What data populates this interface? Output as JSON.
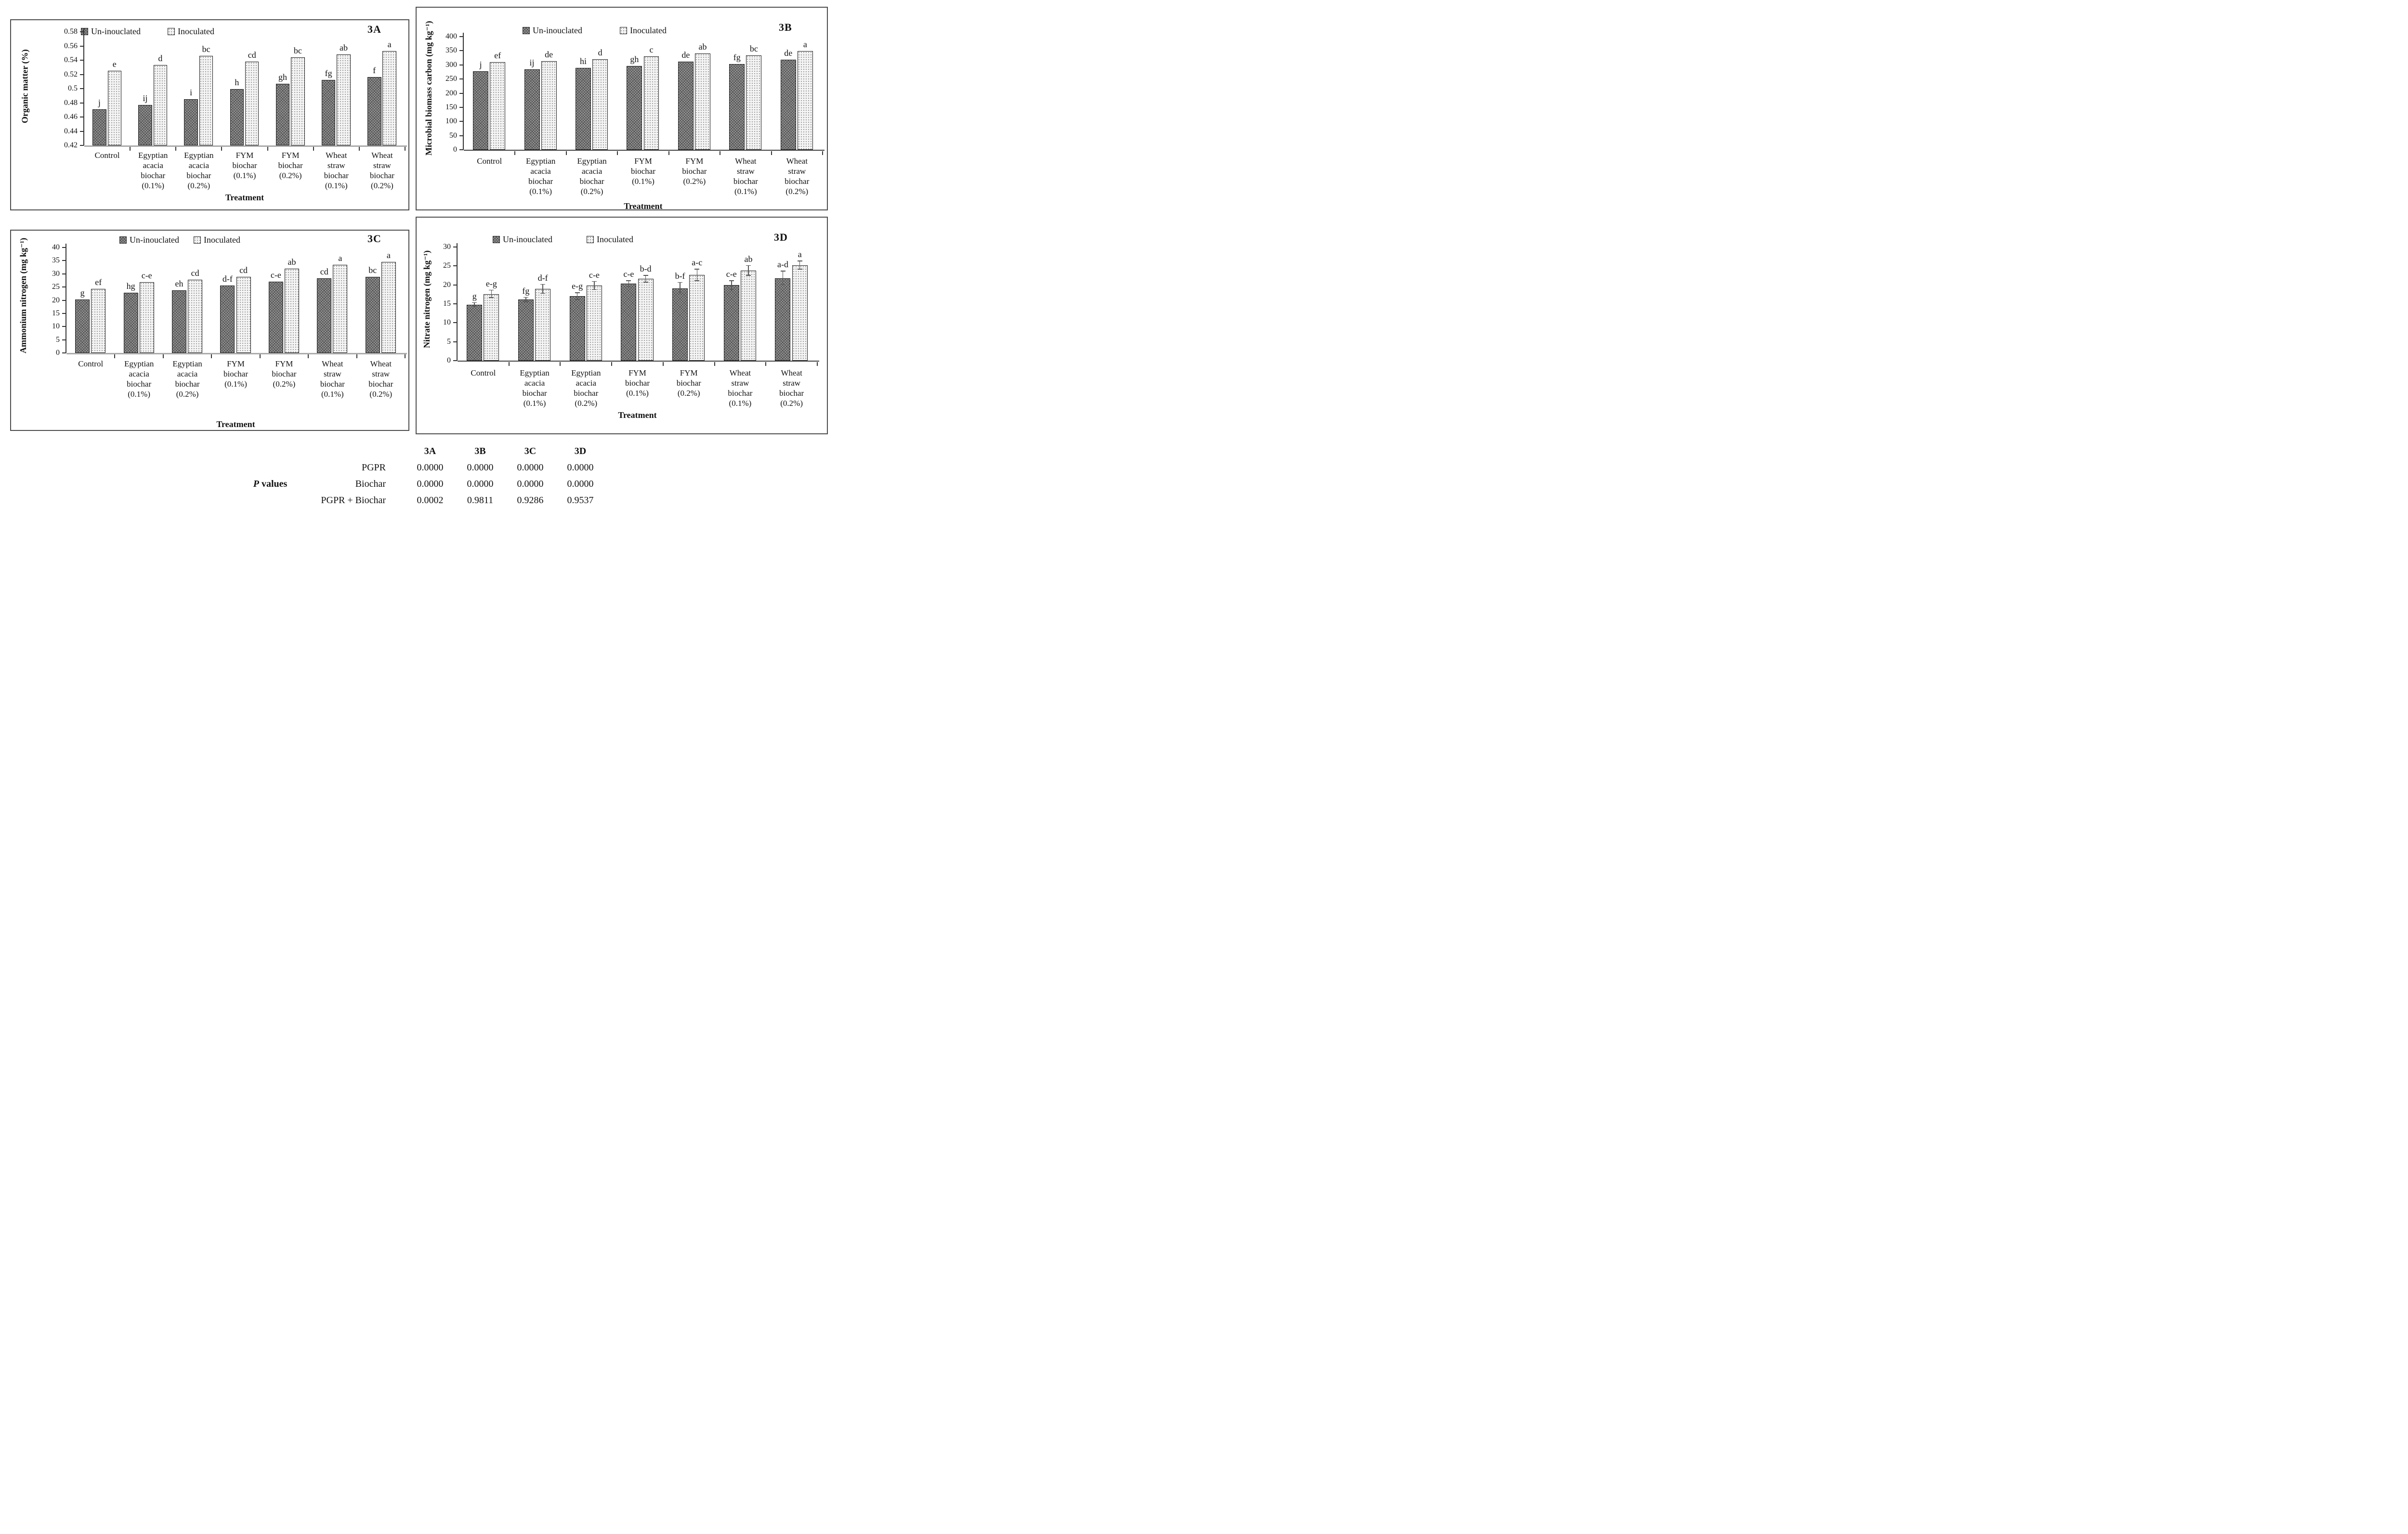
{
  "chart_data": [
    {
      "type": "bar",
      "title": "3A",
      "ylabel": "Organic matter (%)",
      "xlabel": "Treatment",
      "ylim": [
        0.42,
        0.58
      ],
      "yticks": [
        "0.58",
        "0.56",
        "0.54",
        "0.52",
        "0.5",
        "0.48",
        "0.46",
        "0.44",
        "0.42"
      ],
      "grid": false,
      "legend_position": "top",
      "categories": [
        "Control",
        "Egyptian\nacacia\nbiochar\n(0.1%)",
        "Egyptian\nacacia\nbiochar\n(0.2%)",
        "FYM\nbiochar\n(0.1%)",
        "FYM\nbiochar\n(0.2%)",
        "Wheat\nstraw\nbiochar\n(0.1%)",
        "Wheat\nstraw\nbiochar\n(0.2%)"
      ],
      "series": [
        {
          "name": "Un-inouclated",
          "values": [
            0.471,
            0.477,
            0.485,
            0.499,
            0.507,
            0.512,
            0.516
          ],
          "sig_letters": [
            "j",
            "ij",
            "i",
            "h",
            "gh",
            "fg",
            "f"
          ]
        },
        {
          "name": "Inoculated",
          "values": [
            0.525,
            0.533,
            0.546,
            0.538,
            0.544,
            0.548,
            0.553
          ],
          "sig_letters": [
            "e",
            "d",
            "bc",
            "cd",
            "bc",
            "ab",
            "a"
          ]
        }
      ]
    },
    {
      "type": "bar",
      "title": "3B",
      "ylabel": "Microbial biomass carbon (mg kg⁻¹)",
      "xlabel": "Treatment",
      "ylim": [
        0,
        400
      ],
      "yticks": [
        "400",
        "350",
        "300",
        "250",
        "200",
        "150",
        "100",
        "50",
        "0"
      ],
      "grid": false,
      "legend_position": "top",
      "categories": [
        "Control",
        "Egyptian\nacacia\nbiochar\n(0.1%)",
        "Egyptian\nacacia\nbiochar\n(0.2%)",
        "FYM\nbiochar\n(0.1%)",
        "FYM\nbiochar\n(0.2%)",
        "Wheat\nstraw\nbiochar\n(0.1%)",
        "Wheat\nstraw\nbiochar\n(0.2%)"
      ],
      "series": [
        {
          "name": "Un-inouclated",
          "values": [
            277,
            284,
            290,
            297,
            312,
            303,
            319
          ],
          "sig_letters": [
            "j",
            "ij",
            "hi",
            "gh",
            "de",
            "fg",
            "de"
          ]
        },
        {
          "name": "Inoculated",
          "values": [
            309,
            313,
            320,
            330,
            341,
            333,
            349
          ],
          "sig_letters": [
            "ef",
            "de",
            "d",
            "c",
            "ab",
            "bc",
            "a"
          ]
        }
      ]
    },
    {
      "type": "bar",
      "title": "3C",
      "ylabel": "Ammonium nitrogen  (mg kg⁻¹)",
      "xlabel": "Treatment",
      "ylim": [
        0,
        40
      ],
      "yticks": [
        "40",
        "35",
        "30",
        "25",
        "20",
        "15",
        "10",
        "5",
        "0"
      ],
      "grid": false,
      "legend_position": "top",
      "categories": [
        "Control",
        "Egyptian\nacacia\nbiochar\n(0.1%)",
        "Egyptian\nacacia\nbiochar\n(0.2%)",
        "FYM\nbiochar\n(0.1%)",
        "FYM\nbiochar\n(0.2%)",
        "Wheat\nstraw\nbiochar\n(0.1%)",
        "Wheat\nstraw\nbiochar\n(0.2%)"
      ],
      "series": [
        {
          "name": "Un-inouclated",
          "values": [
            20.2,
            22.8,
            23.7,
            25.5,
            27.0,
            28.3,
            28.8
          ],
          "sig_letters": [
            "g",
            "hg",
            "eh",
            "d-f",
            "c-e",
            "cd",
            "bc"
          ]
        },
        {
          "name": "Inoculated",
          "values": [
            24.3,
            26.8,
            27.7,
            28.8,
            31.9,
            33.5,
            34.6
          ],
          "sig_letters": [
            "ef",
            "c-e",
            "cd",
            "cd",
            "ab",
            "a",
            "a"
          ]
        }
      ]
    },
    {
      "type": "bar",
      "title": "3D",
      "ylabel": "Nitrate nitrogen  (mg kg⁻¹)",
      "xlabel": "Treatment",
      "ylim": [
        0,
        30
      ],
      "yticks": [
        "30",
        "25",
        "20",
        "15",
        "10",
        "5",
        "0"
      ],
      "grid": false,
      "legend_position": "top",
      "categories": [
        "Control",
        "Egyptian\nacacia\nbiochar\n(0.1%)",
        "Egyptian\nacacia\nbiochar\n(0.2%)",
        "FYM\nbiochar\n(0.1%)",
        "FYM\nbiochar\n(0.2%)",
        "Wheat\nstraw\nbiochar\n(0.1%)",
        "Wheat\nstraw\nbiochar\n(0.2%)"
      ],
      "series": [
        {
          "name": "Un-inouclated",
          "values": [
            14.8,
            16.1,
            17.0,
            20.3,
            19.1,
            19.9,
            21.8
          ],
          "sig_letters": [
            "g",
            "fg",
            "e-g",
            "c-e",
            "b-f",
            "c-e",
            "a-d"
          ]
        },
        {
          "name": "Inoculated",
          "values": [
            17.6,
            18.9,
            19.8,
            21.6,
            22.6,
            23.8,
            25.2
          ],
          "sig_letters": [
            "e-g",
            "d-f",
            "c-e",
            "b-d",
            "a-c",
            "ab",
            "a"
          ]
        }
      ],
      "errors": [
        [
          0.5,
          0.6,
          0.9,
          0.8,
          1.5,
          1.2,
          1.8
        ],
        [
          1.0,
          1.2,
          1.1,
          0.9,
          1.5,
          1.3,
          1.1
        ]
      ]
    }
  ],
  "pvalues": {
    "label_p": "P",
    "label_rest": "values",
    "columns": [
      "3A",
      "3B",
      "3C",
      "3D"
    ],
    "rows": [
      {
        "label": "PGPR",
        "values": [
          "0.0000",
          "0.0000",
          "0.0000",
          "0.0000"
        ]
      },
      {
        "label": "Biochar",
        "values": [
          "0.0000",
          "0.0000",
          "0.0000",
          "0.0000"
        ]
      },
      {
        "label": "PGPR + Biochar",
        "values": [
          "0.0002",
          "0.9811",
          "0.9286",
          "0.9537"
        ]
      }
    ]
  }
}
